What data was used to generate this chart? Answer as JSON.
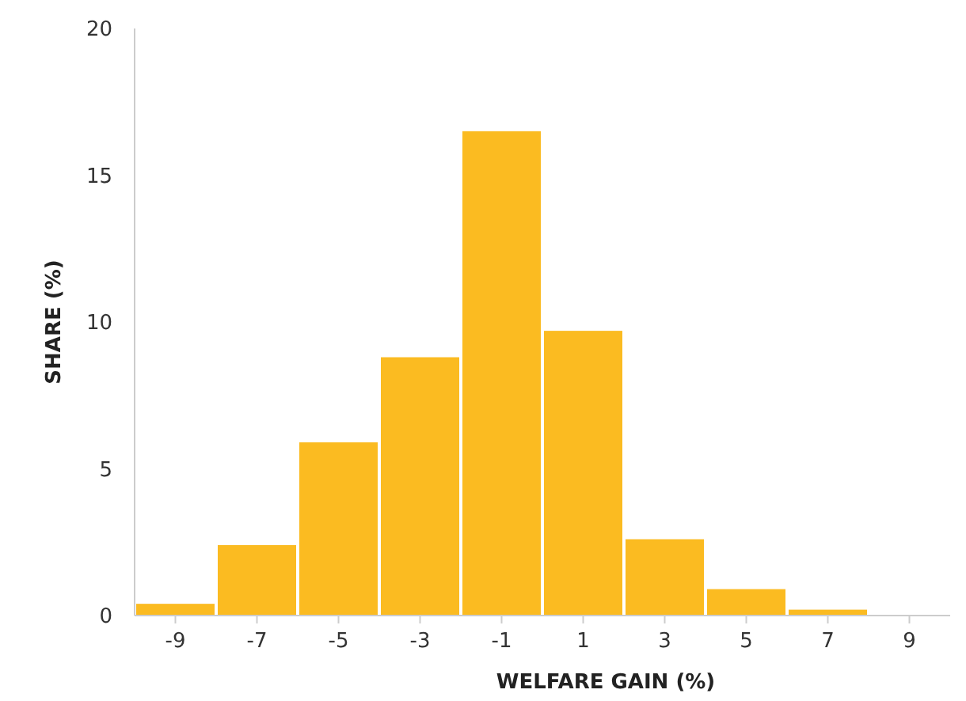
{
  "chart_data": {
    "type": "histogram",
    "xlabel": "WELFARE GAIN (%)",
    "ylabel": "SHARE (%)",
    "bins": [
      -10,
      -8,
      -6,
      -4,
      -2,
      0,
      2,
      4,
      6,
      8
    ],
    "values": [
      0.4,
      2.4,
      5.9,
      8.8,
      16.5,
      9.7,
      2.6,
      0.9,
      0.2
    ],
    "color": "#fbbb21",
    "xlim": [
      -10,
      10
    ],
    "xticks": [
      -9,
      -7,
      -5,
      -3,
      -1,
      1,
      3,
      5,
      7,
      9
    ],
    "ylim": [
      0,
      20
    ],
    "yticks": [
      0,
      5,
      10,
      15,
      20
    ],
    "grid": false
  }
}
